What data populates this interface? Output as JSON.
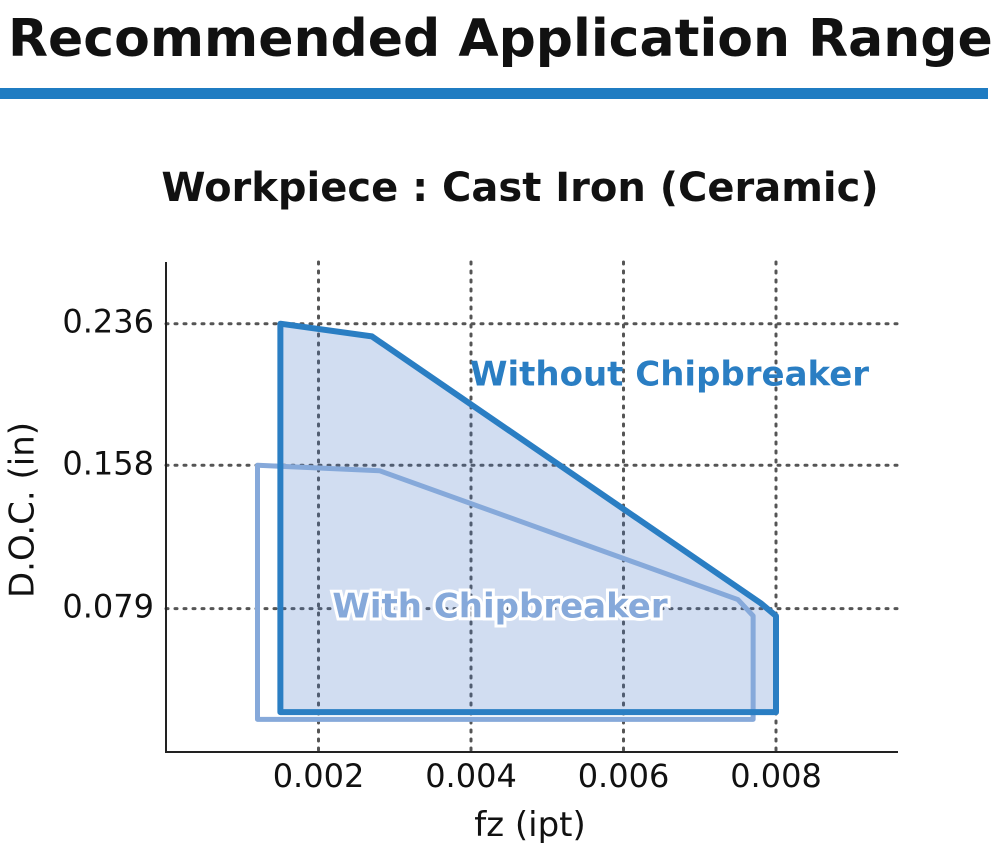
{
  "header": {
    "title": "Recommended Application Range"
  },
  "chart_data": {
    "type": "region",
    "title": "Workpiece : Cast Iron (Ceramic)",
    "xlabel": "fz",
    "xlabel_unit": "(ipt)",
    "ylabel": "D.O.C. (in)",
    "xlim": [
      0,
      0.0096
    ],
    "ylim": [
      0,
      0.27
    ],
    "xticks": [
      0.002,
      0.004,
      0.006,
      0.008
    ],
    "yticks": [
      0.079,
      0.158,
      0.236
    ],
    "grid": true,
    "series": [
      {
        "name": "Without Chipbreaker",
        "color": "#2a7ec3",
        "fill": "rgba(70,120,200,0.25)",
        "x": [
          0.0015,
          0.0027,
          0.0078,
          0.008,
          0.008,
          0.0015
        ],
        "y": [
          0.236,
          0.229,
          0.082,
          0.075,
          0.022,
          0.022
        ]
      },
      {
        "name": "With Chipbreaker",
        "color": "#86a9da",
        "x": [
          0.0012,
          0.0028,
          0.0075,
          0.0077,
          0.0077,
          0.0012
        ],
        "y": [
          0.158,
          0.155,
          0.084,
          0.075,
          0.018,
          0.018
        ]
      }
    ]
  }
}
